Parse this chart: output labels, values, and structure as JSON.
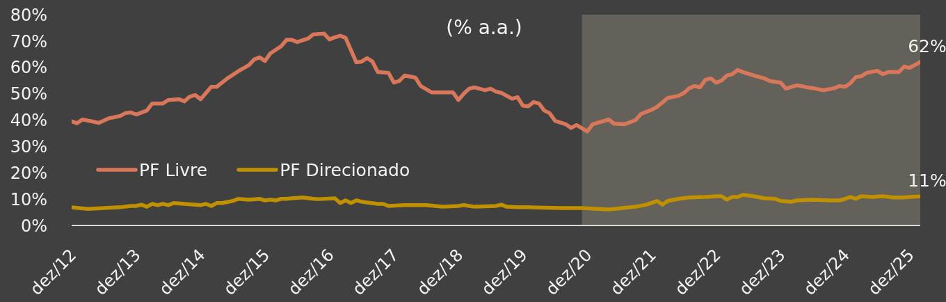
{
  "chart_data": {
    "type": "line",
    "subtitle": "(% a.a.)",
    "xlim": [
      "2012-12",
      "2026-02"
    ],
    "xticks": [
      {
        "value": "2012-12",
        "label": "dez/12"
      },
      {
        "value": "2013-12",
        "label": "dez/13"
      },
      {
        "value": "2014-12",
        "label": "dez/14"
      },
      {
        "value": "2015-12",
        "label": "dez/15"
      },
      {
        "value": "2016-12",
        "label": "dez/16"
      },
      {
        "value": "2017-12",
        "label": "dez/17"
      },
      {
        "value": "2018-12",
        "label": "dez/18"
      },
      {
        "value": "2019-12",
        "label": "dez/19"
      },
      {
        "value": "2020-12",
        "label": "dez/20"
      },
      {
        "value": "2021-12",
        "label": "dez/21"
      },
      {
        "value": "2022-12",
        "label": "dez/22"
      },
      {
        "value": "2023-12",
        "label": "dez/23"
      },
      {
        "value": "2024-12",
        "label": "dez/24"
      },
      {
        "value": "2025-12",
        "label": "dez/25"
      }
    ],
    "ylim": [
      0,
      80
    ],
    "yticks": [
      {
        "value": 0,
        "label": "0%"
      },
      {
        "value": 10,
        "label": "10%"
      },
      {
        "value": 20,
        "label": "20%"
      },
      {
        "value": 30,
        "label": "30%"
      },
      {
        "value": 40,
        "label": "40%"
      },
      {
        "value": 50,
        "label": "50%"
      },
      {
        "value": 60,
        "label": "60%"
      },
      {
        "value": 70,
        "label": "70%"
      },
      {
        "value": 80,
        "label": "80%"
      }
    ],
    "legend": "bottom left",
    "line_style": "solid",
    "bands": [
      {
        "axis": "x",
        "from": "2020-11",
        "to": "2026-02",
        "color": "#64615a"
      }
    ],
    "series": [
      {
        "name": "PF Livre",
        "color": "#d9775a",
        "x": [
          "2012-12",
          "2013-01",
          "2013-02",
          "2013-04",
          "2013-05",
          "2013-07",
          "2013-09",
          "2013-10",
          "2013-11",
          "2013-12",
          "2014-02",
          "2014-03",
          "2014-05",
          "2014-06",
          "2014-08",
          "2014-09",
          "2014-10",
          "2014-11",
          "2014-12",
          "2015-02",
          "2015-03",
          "2015-05",
          "2015-07",
          "2015-09",
          "2015-10",
          "2015-11",
          "2015-12",
          "2016-01",
          "2016-03",
          "2016-04",
          "2016-05",
          "2016-06",
          "2016-08",
          "2016-09",
          "2016-11",
          "2016-12",
          "2017-01",
          "2017-02",
          "2017-03",
          "2017-05",
          "2017-06",
          "2017-07",
          "2017-08",
          "2017-09",
          "2017-11",
          "2017-12",
          "2018-01",
          "2018-02",
          "2018-04",
          "2018-05",
          "2018-07",
          "2018-09",
          "2018-11",
          "2018-12",
          "2019-01",
          "2019-02",
          "2019-03",
          "2019-05",
          "2019-06",
          "2019-07",
          "2019-08",
          "2019-10",
          "2019-11",
          "2019-12",
          "2020-01",
          "2020-02",
          "2020-03",
          "2020-04",
          "2020-05",
          "2020-06",
          "2020-08",
          "2020-09",
          "2020-10",
          "2020-12",
          "2021-01",
          "2021-04",
          "2021-05",
          "2021-07",
          "2021-09",
          "2021-10",
          "2021-12",
          "2022-01",
          "2022-03",
          "2022-05",
          "2022-06",
          "2022-07",
          "2022-08",
          "2022-09",
          "2022-10",
          "2022-11",
          "2022-12",
          "2023-01",
          "2023-02",
          "2023-03",
          "2023-04",
          "2023-05",
          "2023-07",
          "2023-09",
          "2023-10",
          "2023-12",
          "2024-01",
          "2024-03",
          "2024-05",
          "2024-06",
          "2024-08",
          "2024-10",
          "2024-11",
          "2024-12",
          "2025-01",
          "2025-02",
          "2025-03",
          "2025-04",
          "2025-06",
          "2025-07",
          "2025-08",
          "2025-10",
          "2025-11",
          "2025-12",
          "2026-02"
        ],
        "values": [
          39.5,
          38.8,
          40.2,
          39.4,
          38.9,
          40.7,
          41.5,
          42.6,
          42.9,
          42.1,
          43.6,
          46.3,
          46.3,
          47.6,
          47.9,
          47.1,
          48.9,
          49.5,
          47.9,
          52.6,
          52.6,
          55.8,
          58.5,
          60.8,
          63.0,
          63.8,
          62.4,
          65.3,
          68.0,
          70.4,
          70.4,
          69.6,
          70.9,
          72.5,
          72.8,
          70.6,
          71.4,
          72.0,
          71.2,
          61.9,
          62.2,
          63.5,
          62.2,
          58.2,
          57.9,
          54.2,
          54.8,
          56.9,
          56.1,
          52.9,
          50.5,
          50.5,
          50.5,
          47.6,
          50.0,
          51.9,
          52.4,
          51.3,
          51.9,
          50.8,
          50.3,
          48.1,
          48.7,
          45.5,
          45.2,
          46.8,
          46.3,
          43.6,
          42.6,
          39.7,
          38.4,
          37.0,
          38.1,
          35.7,
          38.4,
          40.2,
          38.6,
          38.4,
          40.0,
          42.3,
          43.9,
          45.0,
          48.4,
          49.2,
          50.3,
          52.1,
          52.9,
          52.4,
          55.3,
          55.8,
          54.2,
          55.0,
          56.9,
          57.4,
          59.0,
          58.2,
          56.9,
          55.8,
          54.8,
          54.2,
          51.9,
          53.2,
          52.4,
          52.1,
          51.3,
          52.1,
          52.9,
          52.6,
          54.0,
          56.3,
          56.6,
          57.9,
          58.7,
          57.4,
          58.2,
          58.2,
          60.3,
          59.8,
          62
        ],
        "value_labels": [
          null,
          null,
          null,
          null,
          null,
          null,
          null,
          null,
          null,
          null,
          null,
          null,
          null,
          null,
          null,
          null,
          null,
          null,
          null,
          null,
          null,
          null,
          null,
          null,
          null,
          null,
          null,
          null,
          null,
          null,
          null,
          null,
          null,
          null,
          null,
          null,
          null,
          null,
          null,
          null,
          null,
          null,
          null,
          null,
          null,
          null,
          null,
          null,
          null,
          null,
          null,
          null,
          null,
          null,
          null,
          null,
          null,
          null,
          null,
          null,
          null,
          null,
          null,
          null,
          null,
          null,
          null,
          null,
          null,
          null,
          null,
          null,
          null,
          null,
          null,
          null,
          null,
          null,
          null,
          null,
          null,
          null,
          null,
          null,
          null,
          null,
          null,
          null,
          null,
          null,
          null,
          null,
          null,
          null,
          null,
          null,
          null,
          null,
          null,
          null,
          null,
          null,
          null,
          null,
          null,
          null,
          null,
          null,
          null,
          null,
          null,
          null,
          null,
          null,
          null,
          null,
          null,
          null,
          "62%"
        ]
      },
      {
        "name": "PF Direcionado",
        "color": "#bf9000",
        "x": [
          "2012-12",
          "2013-03",
          "2013-06",
          "2013-09",
          "2013-11",
          "2013-12",
          "2014-01",
          "2014-02",
          "2014-03",
          "2014-04",
          "2014-05",
          "2014-06",
          "2014-07",
          "2014-09",
          "2014-12",
          "2015-01",
          "2015-02",
          "2015-03",
          "2015-04",
          "2015-06",
          "2015-07",
          "2015-09",
          "2015-11",
          "2015-12",
          "2016-01",
          "2016-02",
          "2016-03",
          "2016-04",
          "2016-05",
          "2016-07",
          "2016-09",
          "2016-10",
          "2017-01",
          "2017-02",
          "2017-03",
          "2017-04",
          "2017-05",
          "2017-06",
          "2017-09",
          "2017-10",
          "2017-11",
          "2018-02",
          "2018-06",
          "2018-09",
          "2018-12",
          "2019-01",
          "2019-03",
          "2019-07",
          "2019-08",
          "2019-09",
          "2019-11",
          "2020-01",
          "2020-07",
          "2020-11",
          "2021-04",
          "2021-05",
          "2021-09",
          "2021-11",
          "2022-01",
          "2022-02",
          "2022-03",
          "2022-05",
          "2022-07",
          "2022-10",
          "2022-12",
          "2023-01",
          "2023-02",
          "2023-03",
          "2023-04",
          "2023-05",
          "2023-07",
          "2023-09",
          "2023-11",
          "2023-12",
          "2024-02",
          "2024-03",
          "2024-06",
          "2024-09",
          "2024-11",
          "2024-12",
          "2025-01",
          "2025-02",
          "2025-03",
          "2025-05",
          "2025-07",
          "2025-09",
          "2025-11",
          "2025-12",
          "2026-02"
        ],
        "values": [
          6.9,
          6.3,
          6.6,
          6.9,
          7.4,
          7.4,
          7.9,
          7.1,
          8.2,
          7.7,
          8.2,
          7.7,
          8.5,
          8.2,
          7.7,
          8.2,
          7.4,
          8.5,
          8.5,
          9.3,
          10.1,
          9.8,
          10.1,
          9.5,
          9.8,
          9.5,
          10.1,
          10.1,
          10.3,
          10.6,
          10.1,
          10.0,
          10.3,
          8.5,
          9.5,
          8.5,
          9.5,
          9.0,
          8.2,
          8.2,
          7.4,
          7.7,
          7.7,
          7.1,
          7.4,
          7.7,
          7.1,
          7.4,
          7.9,
          7.1,
          6.9,
          6.9,
          6.6,
          6.6,
          6.1,
          6.3,
          7.1,
          7.9,
          9.3,
          7.9,
          9.3,
          10.1,
          10.6,
          10.8,
          11.1,
          11.1,
          9.8,
          10.8,
          10.8,
          11.6,
          11.1,
          10.3,
          10.1,
          9.3,
          9.0,
          9.5,
          9.8,
          9.5,
          9.5,
          10.1,
          10.8,
          10.1,
          11.1,
          10.8,
          11.1,
          10.6,
          10.6,
          10.8,
          11
        ],
        "value_labels": [
          null,
          null,
          null,
          null,
          null,
          null,
          null,
          null,
          null,
          null,
          null,
          null,
          null,
          null,
          null,
          null,
          null,
          null,
          null,
          null,
          null,
          null,
          null,
          null,
          null,
          null,
          null,
          null,
          null,
          null,
          null,
          null,
          null,
          null,
          null,
          null,
          null,
          null,
          null,
          null,
          null,
          null,
          null,
          null,
          null,
          null,
          null,
          null,
          null,
          null,
          null,
          null,
          null,
          null,
          null,
          null,
          null,
          null,
          null,
          null,
          null,
          null,
          null,
          null,
          null,
          null,
          null,
          null,
          null,
          null,
          null,
          null,
          null,
          null,
          null,
          null,
          null,
          null,
          null,
          null,
          null,
          null,
          null,
          null,
          null,
          null,
          null,
          null,
          "11%"
        ]
      }
    ]
  }
}
